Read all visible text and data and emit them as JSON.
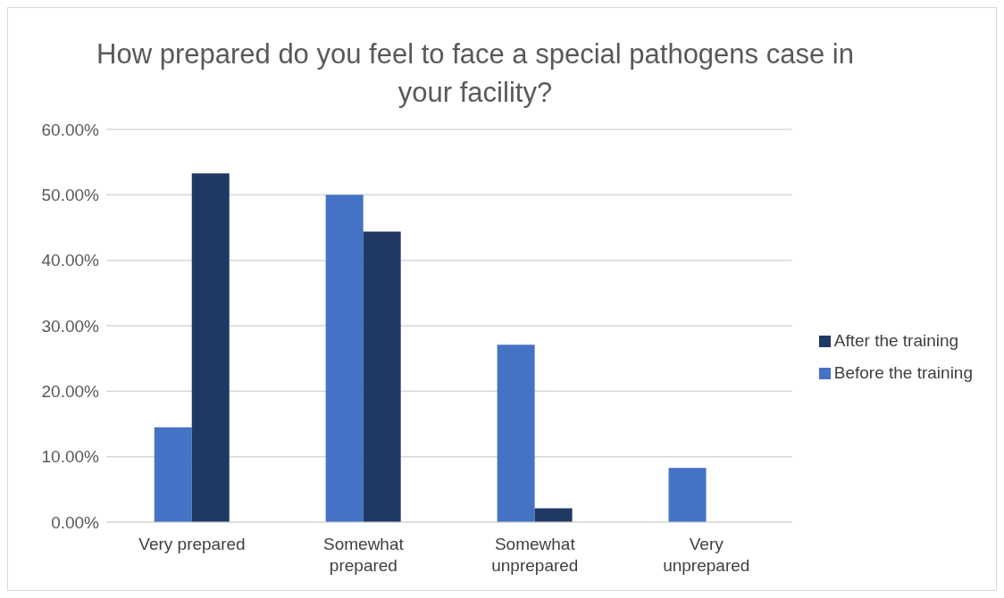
{
  "chart_data": {
    "type": "bar",
    "title": "How prepared do you feel to face a special pathogens case in your facility?",
    "categories": [
      "Very prepared",
      "Somewhat prepared",
      "Somewhat unprepared",
      "Very unprepared"
    ],
    "series": [
      {
        "name": "Before the training",
        "color": "#4472c4",
        "values": [
          14.5,
          50,
          27.1,
          8.3
        ]
      },
      {
        "name": "After the training",
        "color": "#203864",
        "values": [
          53.3,
          44.4,
          2.1,
          0
        ]
      }
    ],
    "ylim": [
      0,
      60
    ],
    "yticks": [
      {
        "value": 0,
        "label": "0.00%"
      },
      {
        "value": 10,
        "label": "10.00%"
      },
      {
        "value": 20,
        "label": "20.00%"
      },
      {
        "value": 30,
        "label": "30.00%"
      },
      {
        "value": 40,
        "label": "40.00%"
      },
      {
        "value": 50,
        "label": "50.00%"
      },
      {
        "value": 60,
        "label": "60.00%"
      }
    ],
    "grid": "y",
    "legend": "right"
  }
}
